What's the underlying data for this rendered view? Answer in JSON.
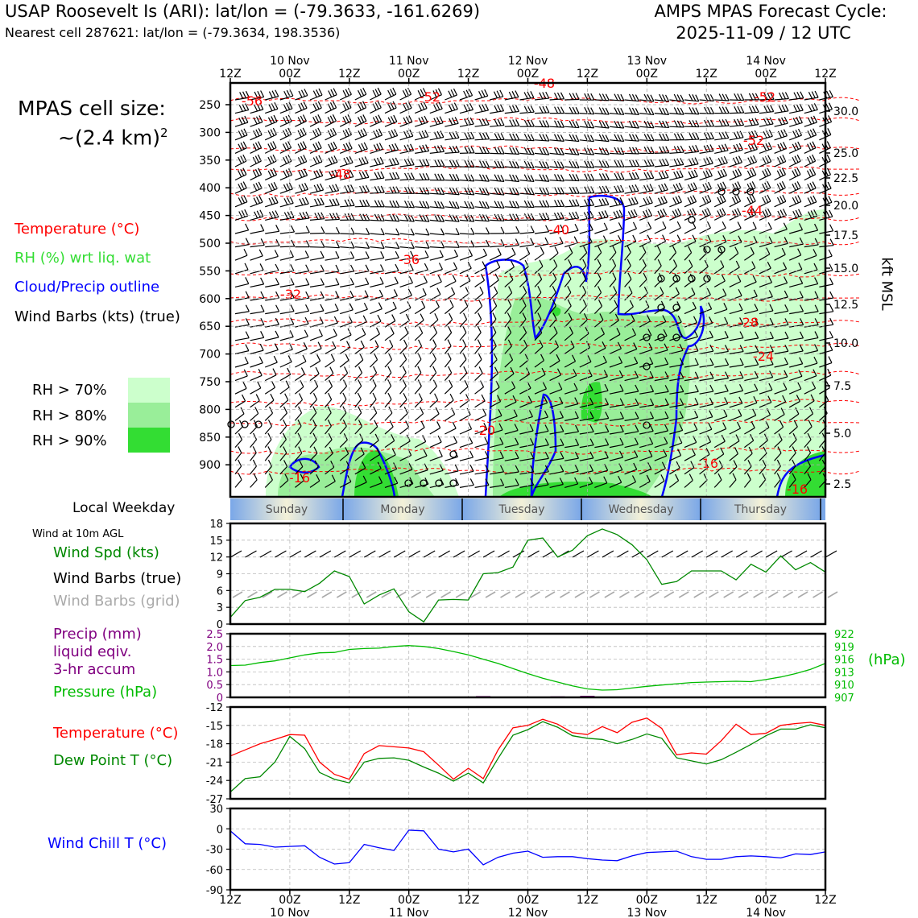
{
  "header": {
    "title_left": "USAP Roosevelt Is (ARI): lat/lon = (-79.3633, -161.6269)",
    "subtitle_left": "Nearest cell 287621: lat/lon = (-79.3634, 198.3536)",
    "title_right": "AMPS MPAS Forecast Cycle:",
    "cycle": "2025-11-09 / 12 UTC"
  },
  "legend": {
    "cell_size_label": "MPAS cell size:",
    "cell_size_value": "~(2.4 km)",
    "cell_size_exp": "2",
    "temperature": "Temperature (°C)",
    "rh": "RH (%) wrt liq. wat",
    "cloud": "Cloud/Precip outline",
    "wind": "Wind Barbs (kts) (true)",
    "rh70": "RH > 70%",
    "rh80": "RH > 80%",
    "rh90": "RH > 90%",
    "local_weekday": "Local Weekday",
    "wind_10m": "Wind at 10m AGL",
    "wind_spd": "Wind Spd (kts)",
    "wind_barbs_true": "Wind Barbs (true)",
    "wind_barbs_grid": "Wind Barbs (grid)",
    "precip1": "Precip (mm)",
    "precip2": "liquid eqiv.",
    "precip3": "3-hr accum",
    "pressure": "Pressure (hPa)",
    "temp2": "Temperature (°C)",
    "dewpoint": "Dew Point T (°C)",
    "windchill": "Wind Chill T (°C)",
    "kft_label": "kft MSL",
    "hpa_label": "(hPa)"
  },
  "colors": {
    "temp": "#ff0000",
    "rh": "#33dd33",
    "cloud": "#0000ff",
    "rh70": "#ccffcc",
    "rh80": "#99ee99",
    "rh90": "#33dd33",
    "wspd": "#008800",
    "precip": "#800080",
    "pressure": "#00bb00",
    "dew": "#008800",
    "chill": "#0000ff",
    "grid_barb": "#aaaaaa"
  },
  "chart_data": [
    {
      "type": "heatmap",
      "name": "Time-height cross section",
      "time_axis_top": {
        "ticks": [
          "12Z",
          "00Z",
          "12Z",
          "00Z",
          "12Z",
          "00Z",
          "12Z",
          "00Z",
          "12Z",
          "00Z",
          "12Z"
        ],
        "dates": [
          "10 Nov",
          "11 Nov",
          "12 Nov",
          "13 Nov",
          "14 Nov"
        ]
      },
      "pressure_levels": [
        "250",
        "300",
        "350",
        "400",
        "450",
        "500",
        "550",
        "600",
        "650",
        "700",
        "750",
        "800",
        "850",
        "900"
      ],
      "kft_ticks": [
        "30.0",
        "25.0",
        "22.5",
        "20.0",
        "17.5",
        "15.0",
        "12.5",
        "10.0",
        "7.5",
        "5.0",
        "2.5"
      ],
      "temp_contour_labels": [
        "-56",
        "-52",
        "-48",
        "-52",
        "-52",
        "-48",
        "-44",
        "-40",
        "-36",
        "-32",
        "-28",
        "-24",
        "-20",
        "-16",
        "-16",
        "-16"
      ]
    },
    {
      "type": "table",
      "name": "Local weekday",
      "days": [
        "Sunday",
        "Monday",
        "Tuesday",
        "Wednesday",
        "Thursday"
      ]
    },
    {
      "type": "line",
      "name": "Wind speed at 10 m",
      "ylabel": "kts",
      "yticks": [
        "0",
        "3",
        "6",
        "9",
        "12",
        "15",
        "18"
      ],
      "ylim": [
        0,
        18
      ],
      "hours": [
        0,
        3,
        6,
        9,
        12,
        15,
        18,
        21,
        24,
        27,
        30,
        33,
        36,
        39,
        42,
        45,
        48,
        51,
        54,
        57,
        60,
        63,
        66,
        69,
        72,
        75,
        78,
        81,
        84,
        87,
        90,
        93,
        96,
        99,
        102,
        105,
        108,
        111,
        114,
        117,
        120
      ],
      "values": [
        1.2,
        4.2,
        4.8,
        6.2,
        6.2,
        5.8,
        7.3,
        9.5,
        8.5,
        3.6,
        5.2,
        6.3,
        2.2,
        0.4,
        4.3,
        4.4,
        4.3,
        9.0,
        9.2,
        10.2,
        15.0,
        15.4,
        12.0,
        13.2,
        15.8,
        17.0,
        16.0,
        14.2,
        11.5,
        7.1,
        7.6,
        9.5,
        9.5,
        9.5,
        7.9,
        10.7,
        9.3,
        12.2,
        9.7,
        11.0,
        9.3
      ]
    },
    {
      "type": "bar",
      "name": "Precip 3-hr accum",
      "ylabel": "mm",
      "yticks": [
        "0",
        "0.5",
        "1.0",
        "1.5",
        "2.0",
        "2.5"
      ],
      "ylim": [
        0,
        2.5
      ],
      "hours": [
        51,
        63,
        66,
        72,
        75,
        78,
        81
      ],
      "values": [
        0.05,
        0.02,
        0.04,
        0.06,
        0.03,
        0.02,
        0.02
      ]
    },
    {
      "type": "line",
      "name": "Pressure",
      "ylabel": "hPa",
      "yticks": [
        "907",
        "910",
        "913",
        "916",
        "919",
        "922"
      ],
      "ylim": [
        907,
        922
      ],
      "hours": [
        0,
        3,
        6,
        9,
        12,
        15,
        18,
        21,
        24,
        27,
        30,
        33,
        36,
        39,
        42,
        45,
        48,
        51,
        54,
        57,
        60,
        63,
        66,
        69,
        72,
        75,
        78,
        81,
        84,
        87,
        90,
        93,
        96,
        99,
        102,
        105,
        108,
        111,
        114,
        117,
        120
      ],
      "values": [
        914.5,
        914.6,
        915.2,
        915.6,
        916.3,
        917.0,
        917.5,
        917.6,
        918.3,
        918.5,
        918.6,
        919.0,
        919.2,
        919.0,
        918.5,
        917.8,
        917.0,
        916.0,
        915.0,
        913.8,
        912.6,
        911.5,
        910.6,
        909.7,
        909.0,
        908.7,
        908.8,
        909.2,
        909.6,
        909.9,
        910.2,
        910.5,
        910.6,
        910.7,
        910.8,
        910.7,
        911.2,
        911.8,
        912.6,
        913.6,
        915.0
      ]
    },
    {
      "type": "line",
      "name": "Temperature and dew point",
      "ylabel": "°C",
      "yticks": [
        "-27",
        "-24",
        "-21",
        "-18",
        "-15",
        "-12"
      ],
      "ylim": [
        -27,
        -12
      ],
      "hours": [
        0,
        3,
        6,
        9,
        12,
        15,
        18,
        21,
        24,
        27,
        30,
        33,
        36,
        39,
        42,
        45,
        48,
        51,
        54,
        57,
        60,
        63,
        66,
        69,
        72,
        75,
        78,
        81,
        84,
        87,
        90,
        93,
        96,
        99,
        102,
        105,
        108,
        111,
        114,
        117,
        120
      ],
      "series": [
        {
          "name": "Temperature",
          "values": [
            -20.0,
            -19.0,
            -18.0,
            -17.3,
            -16.5,
            -16.6,
            -21.0,
            -23.0,
            -23.8,
            -19.6,
            -18.3,
            -18.5,
            -18.7,
            -19.3,
            -21.5,
            -23.8,
            -22.0,
            -23.7,
            -19.0,
            -15.4,
            -15.0,
            -14.0,
            -14.8,
            -16.2,
            -16.5,
            -15.2,
            -16.2,
            -14.5,
            -13.8,
            -15.5,
            -19.8,
            -19.5,
            -19.7,
            -17.5,
            -14.8,
            -16.5,
            -16.3,
            -15.0,
            -14.7,
            -14.5,
            -15.0
          ]
        },
        {
          "name": "Dew Point",
          "values": [
            -25.9,
            -23.7,
            -23.4,
            -21.0,
            -16.8,
            -18.8,
            -22.7,
            -23.8,
            -24.4,
            -21.0,
            -20.4,
            -20.3,
            -20.7,
            -21.8,
            -22.8,
            -24.1,
            -22.8,
            -24.4,
            -20.4,
            -16.6,
            -15.7,
            -14.4,
            -15.3,
            -16.7,
            -17.1,
            -17.3,
            -18.0,
            -17.3,
            -16.4,
            -17.1,
            -20.3,
            -20.8,
            -21.3,
            -20.6,
            -19.4,
            -18.1,
            -16.7,
            -15.6,
            -15.6,
            -14.9,
            -15.4
          ]
        }
      ]
    },
    {
      "type": "line",
      "name": "Wind chill",
      "ylabel": "°C",
      "yticks": [
        "-90",
        "-60",
        "-30",
        "0",
        "30"
      ],
      "ylim": [
        -90,
        30
      ],
      "hours": [
        0,
        3,
        6,
        9,
        12,
        15,
        18,
        21,
        24,
        27,
        30,
        33,
        36,
        39,
        42,
        45,
        48,
        51,
        54,
        57,
        60,
        63,
        66,
        69,
        72,
        75,
        78,
        81,
        84,
        87,
        90,
        93,
        96,
        99,
        102,
        105,
        108,
        111,
        114,
        117,
        120
      ],
      "values": [
        -3,
        -22,
        -23,
        -27,
        -26,
        -25,
        -42,
        -52,
        -50,
        -23,
        -28,
        -32,
        -2,
        -3,
        -30,
        -34,
        -30,
        -53,
        -42,
        -36,
        -33,
        -42,
        -41,
        -41,
        -44,
        -46,
        -47,
        -40,
        -35,
        -34,
        -33,
        -41,
        -45,
        -45,
        -41,
        -40,
        -41,
        -43,
        -37,
        -38,
        -34
      ]
    }
  ],
  "bottom_axis": {
    "ticks": [
      "12Z",
      "00Z",
      "12Z",
      "00Z",
      "12Z",
      "00Z",
      "12Z",
      "00Z",
      "12Z",
      "00Z",
      "12Z"
    ],
    "dates": [
      "10 Nov",
      "11 Nov",
      "12 Nov",
      "13 Nov",
      "14 Nov"
    ]
  }
}
